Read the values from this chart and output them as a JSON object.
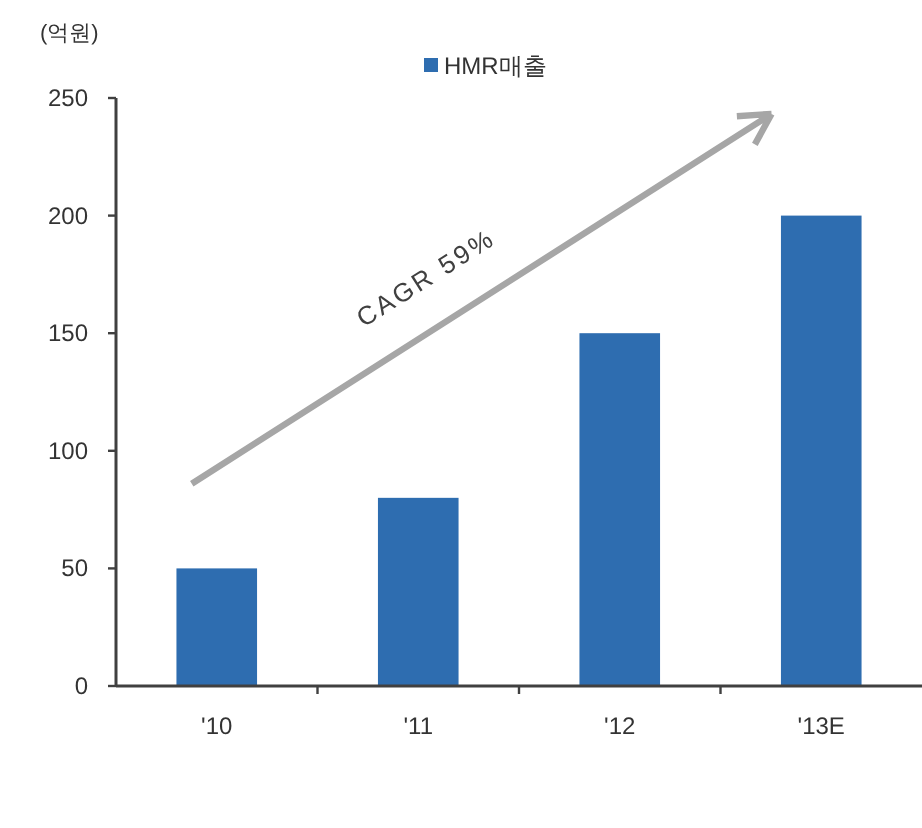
{
  "chart_data": {
    "type": "bar",
    "ylabel": "(억원)",
    "categories": [
      "'10",
      "'11",
      "'12",
      "'13E"
    ],
    "series": [
      {
        "name": "HMR매출",
        "color": "#2e6db0",
        "values": [
          50,
          80,
          150,
          200
        ]
      }
    ],
    "ylim": [
      0,
      250
    ],
    "yticks": [
      0,
      50,
      100,
      150,
      200,
      250
    ],
    "legend": "top",
    "grid": false,
    "annotations": [
      "CAGR 59%"
    ]
  }
}
